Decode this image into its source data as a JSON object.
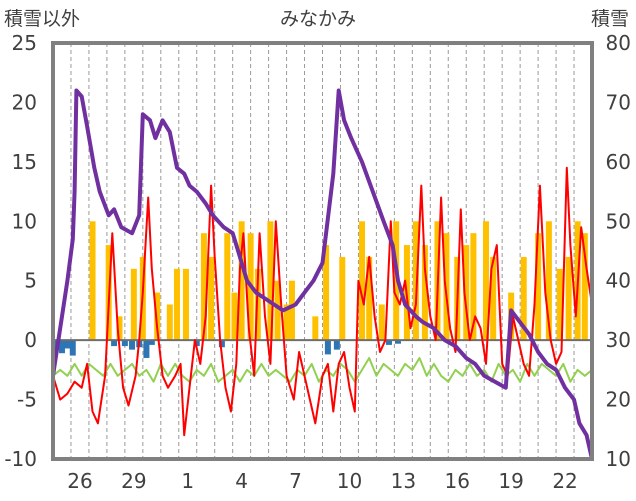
{
  "chart_data": {
    "type": "line",
    "title": "みなかみ",
    "left_axis_label": "積雪以外",
    "right_axis_label": "積雪",
    "y_left": {
      "min": -10,
      "max": 25,
      "ticks": [
        -10,
        -5,
        0,
        5,
        10,
        15,
        20,
        25
      ]
    },
    "y_right": {
      "min": 10,
      "max": 80,
      "ticks": [
        10,
        20,
        30,
        40,
        50,
        60,
        70,
        80
      ]
    },
    "x_ticks": [
      {
        "label": "26",
        "day": 1.5
      },
      {
        "label": "29",
        "day": 4.5
      },
      {
        "label": "1",
        "day": 7.5
      },
      {
        "label": "4",
        "day": 10.5
      },
      {
        "label": "7",
        "day": 13.5
      },
      {
        "label": "10",
        "day": 16.5
      },
      {
        "label": "13",
        "day": 19.5
      },
      {
        "label": "16",
        "day": 22.5
      },
      {
        "label": "19",
        "day": 25.5
      },
      {
        "label": "22",
        "day": 28.5
      }
    ],
    "x_range": [
      0,
      30
    ],
    "grid": "vertical-dashed",
    "colors": {
      "snow_depth": "#7030a0",
      "temp_max": "#ff0000",
      "temp_min": "#92d050",
      "precip": "#ffc000",
      "negative": "#2e75b6",
      "frame": "#808080"
    },
    "series": [
      {
        "key": "snow_depth",
        "axis": "right",
        "points": [
          [
            0,
            24
          ],
          [
            0.3,
            30
          ],
          [
            0.8,
            40
          ],
          [
            1.1,
            47
          ],
          [
            1.2,
            55
          ],
          [
            1.3,
            72
          ],
          [
            1.6,
            71
          ],
          [
            1.9,
            66
          ],
          [
            2.3,
            59
          ],
          [
            2.6,
            55
          ],
          [
            3.1,
            51
          ],
          [
            3.4,
            52
          ],
          [
            3.8,
            49
          ],
          [
            4.4,
            48
          ],
          [
            4.8,
            51
          ],
          [
            5.0,
            68
          ],
          [
            5.4,
            67
          ],
          [
            5.7,
            64
          ],
          [
            6.1,
            67
          ],
          [
            6.5,
            65
          ],
          [
            6.9,
            59
          ],
          [
            7.3,
            58
          ],
          [
            7.6,
            56
          ],
          [
            8.0,
            55
          ],
          [
            8.5,
            53
          ],
          [
            8.9,
            51
          ],
          [
            9.5,
            49
          ],
          [
            10.0,
            48
          ],
          [
            10.4,
            44
          ],
          [
            10.8,
            40
          ],
          [
            11.3,
            38
          ],
          [
            11.8,
            37
          ],
          [
            12.3,
            36
          ],
          [
            12.8,
            35
          ],
          [
            13.5,
            36
          ],
          [
            14.0,
            38
          ],
          [
            14.5,
            40
          ],
          [
            15.0,
            43
          ],
          [
            15.6,
            58
          ],
          [
            15.9,
            72
          ],
          [
            16.2,
            67
          ],
          [
            16.6,
            64
          ],
          [
            17.2,
            60
          ],
          [
            17.8,
            55
          ],
          [
            18.4,
            50
          ],
          [
            18.9,
            46
          ],
          [
            19.2,
            40
          ],
          [
            19.6,
            36
          ],
          [
            20.2,
            34
          ],
          [
            20.6,
            33
          ],
          [
            21.2,
            32
          ],
          [
            21.8,
            30
          ],
          [
            22.4,
            29
          ],
          [
            23.0,
            27
          ],
          [
            23.5,
            26
          ],
          [
            24.0,
            24
          ],
          [
            24.6,
            23
          ],
          [
            25.2,
            22
          ],
          [
            25.5,
            35
          ],
          [
            26.0,
            33
          ],
          [
            26.5,
            31
          ],
          [
            27.0,
            28
          ],
          [
            27.5,
            26
          ],
          [
            28.0,
            25
          ],
          [
            28.5,
            22
          ],
          [
            29.0,
            20
          ],
          [
            29.3,
            16
          ],
          [
            29.7,
            14
          ],
          [
            30.0,
            10
          ]
        ]
      },
      {
        "key": "temp_max",
        "axis": "left",
        "points": [
          [
            0,
            -3
          ],
          [
            0.4,
            -5
          ],
          [
            0.8,
            -4.5
          ],
          [
            1.2,
            -3.5
          ],
          [
            1.6,
            -4
          ],
          [
            1.9,
            -2
          ],
          [
            2.2,
            -6
          ],
          [
            2.5,
            -7
          ],
          [
            2.9,
            -3
          ],
          [
            3.1,
            3
          ],
          [
            3.3,
            9
          ],
          [
            3.6,
            1
          ],
          [
            3.9,
            -4
          ],
          [
            4.2,
            -5.5
          ],
          [
            4.6,
            -3
          ],
          [
            4.8,
            0
          ],
          [
            5.0,
            4
          ],
          [
            5.3,
            12
          ],
          [
            5.5,
            6
          ],
          [
            5.8,
            1
          ],
          [
            6.1,
            -3
          ],
          [
            6.4,
            -4
          ],
          [
            6.8,
            -3
          ],
          [
            7.1,
            -2
          ],
          [
            7.3,
            -8
          ],
          [
            7.6,
            -4
          ],
          [
            7.9,
            0
          ],
          [
            8.2,
            -2
          ],
          [
            8.5,
            2
          ],
          [
            8.8,
            13
          ],
          [
            9.0,
            7
          ],
          [
            9.3,
            0
          ],
          [
            9.6,
            -4
          ],
          [
            9.9,
            -6
          ],
          [
            10.2,
            -2
          ],
          [
            10.4,
            6
          ],
          [
            10.6,
            9
          ],
          [
            10.9,
            1
          ],
          [
            11.2,
            -3
          ],
          [
            11.5,
            9
          ],
          [
            11.8,
            2
          ],
          [
            12.1,
            -2
          ],
          [
            12.4,
            10
          ],
          [
            12.7,
            3
          ],
          [
            13.0,
            -3
          ],
          [
            13.4,
            -5
          ],
          [
            13.7,
            -1
          ],
          [
            14.0,
            -3
          ],
          [
            14.3,
            -5
          ],
          [
            14.6,
            -7
          ],
          [
            15.0,
            -3
          ],
          [
            15.3,
            -2
          ],
          [
            15.6,
            -6
          ],
          [
            15.9,
            -2
          ],
          [
            16.2,
            -1
          ],
          [
            16.5,
            -4
          ],
          [
            16.8,
            -6
          ],
          [
            17.0,
            5
          ],
          [
            17.3,
            3
          ],
          [
            17.6,
            7
          ],
          [
            17.9,
            2
          ],
          [
            18.2,
            -1
          ],
          [
            18.5,
            0
          ],
          [
            18.8,
            10
          ],
          [
            19.0,
            4
          ],
          [
            19.3,
            3
          ],
          [
            19.6,
            5
          ],
          [
            19.9,
            1
          ],
          [
            20.2,
            3
          ],
          [
            20.5,
            13
          ],
          [
            20.7,
            6
          ],
          [
            21.0,
            2
          ],
          [
            21.3,
            0
          ],
          [
            21.6,
            12
          ],
          [
            21.8,
            5
          ],
          [
            22.1,
            1
          ],
          [
            22.4,
            -1
          ],
          [
            22.7,
            11
          ],
          [
            22.9,
            4
          ],
          [
            23.2,
            0
          ],
          [
            23.5,
            2
          ],
          [
            23.8,
            1
          ],
          [
            24.1,
            -2
          ],
          [
            24.4,
            6
          ],
          [
            24.7,
            8
          ],
          [
            25.0,
            -2
          ],
          [
            25.3,
            -3
          ],
          [
            25.6,
            2
          ],
          [
            25.9,
            0
          ],
          [
            26.2,
            -2
          ],
          [
            26.5,
            -3
          ],
          [
            26.8,
            3
          ],
          [
            27.1,
            13
          ],
          [
            27.4,
            4
          ],
          [
            27.7,
            0
          ],
          [
            28.0,
            -2
          ],
          [
            28.3,
            -1
          ],
          [
            28.6,
            14.5
          ],
          [
            28.8,
            8
          ],
          [
            29.1,
            2
          ],
          [
            29.4,
            9.5
          ],
          [
            29.7,
            6
          ],
          [
            30.0,
            3
          ]
        ]
      },
      {
        "key": "temp_min",
        "axis": "left",
        "points": [
          [
            0,
            -3
          ],
          [
            0.4,
            -2.5
          ],
          [
            0.8,
            -3
          ],
          [
            1.2,
            -2
          ],
          [
            1.6,
            -3
          ],
          [
            2.0,
            -2
          ],
          [
            2.4,
            -2.5
          ],
          [
            2.8,
            -3
          ],
          [
            3.2,
            -2
          ],
          [
            3.6,
            -3
          ],
          [
            4.0,
            -2.5
          ],
          [
            4.4,
            -2
          ],
          [
            4.8,
            -3
          ],
          [
            5.2,
            -2.5
          ],
          [
            5.6,
            -3.5
          ],
          [
            6.0,
            -2
          ],
          [
            6.4,
            -3
          ],
          [
            6.8,
            -2
          ],
          [
            7.2,
            -3
          ],
          [
            7.6,
            -3.5
          ],
          [
            8.0,
            -2.5
          ],
          [
            8.4,
            -3
          ],
          [
            8.8,
            -2
          ],
          [
            9.2,
            -3.5
          ],
          [
            9.6,
            -3
          ],
          [
            10.0,
            -2.5
          ],
          [
            10.4,
            -3.5
          ],
          [
            10.8,
            -2.5
          ],
          [
            11.2,
            -3
          ],
          [
            11.6,
            -2
          ],
          [
            12.0,
            -3
          ],
          [
            12.4,
            -2.5
          ],
          [
            12.8,
            -3
          ],
          [
            13.2,
            -3.5
          ],
          [
            13.6,
            -2.5
          ],
          [
            14.0,
            -3
          ],
          [
            14.4,
            -2
          ],
          [
            14.8,
            -3.5
          ],
          [
            15.2,
            -2.5
          ],
          [
            15.6,
            -3
          ],
          [
            16.0,
            -2
          ],
          [
            16.4,
            -2.5
          ],
          [
            16.8,
            -3.5
          ],
          [
            17.2,
            -2.5
          ],
          [
            17.6,
            -1.5
          ],
          [
            18.0,
            -3
          ],
          [
            18.4,
            -2
          ],
          [
            18.8,
            -2.5
          ],
          [
            19.2,
            -3
          ],
          [
            19.6,
            -2
          ],
          [
            20.0,
            -2.5
          ],
          [
            20.4,
            -1.5
          ],
          [
            20.8,
            -3
          ],
          [
            21.2,
            -2
          ],
          [
            21.6,
            -3
          ],
          [
            22.0,
            -3.5
          ],
          [
            22.4,
            -2.5
          ],
          [
            22.8,
            -3
          ],
          [
            23.2,
            -2
          ],
          [
            23.6,
            -3
          ],
          [
            24.0,
            -2.5
          ],
          [
            24.4,
            -3.5
          ],
          [
            24.8,
            -2
          ],
          [
            25.2,
            -3
          ],
          [
            25.6,
            -2.5
          ],
          [
            26.0,
            -3.5
          ],
          [
            26.4,
            -2
          ],
          [
            26.8,
            -3
          ],
          [
            27.2,
            -2
          ],
          [
            27.6,
            -2.5
          ],
          [
            28.0,
            -3
          ],
          [
            28.4,
            -2
          ],
          [
            28.8,
            -3.5
          ],
          [
            29.2,
            -2.5
          ],
          [
            29.6,
            -3
          ],
          [
            30.0,
            -2.5
          ]
        ]
      }
    ],
    "precip_bars": [
      [
        2.2,
        10
      ],
      [
        3.1,
        8
      ],
      [
        3.7,
        2
      ],
      [
        4.5,
        6
      ],
      [
        5.0,
        7
      ],
      [
        5.8,
        4
      ],
      [
        6.5,
        3
      ],
      [
        6.9,
        6
      ],
      [
        7.4,
        6
      ],
      [
        8.4,
        9
      ],
      [
        8.8,
        7
      ],
      [
        9.7,
        9
      ],
      [
        10.1,
        4
      ],
      [
        10.5,
        10
      ],
      [
        11.0,
        9
      ],
      [
        11.4,
        6
      ],
      [
        12.1,
        10
      ],
      [
        12.5,
        5
      ],
      [
        13.0,
        3
      ],
      [
        13.3,
        5
      ],
      [
        14.6,
        2
      ],
      [
        15.2,
        8
      ],
      [
        16.1,
        7
      ],
      [
        17.2,
        10
      ],
      [
        17.6,
        7
      ],
      [
        18.3,
        3
      ],
      [
        19.1,
        10
      ],
      [
        19.7,
        8
      ],
      [
        20.2,
        10
      ],
      [
        20.7,
        8
      ],
      [
        21.4,
        10
      ],
      [
        21.9,
        9
      ],
      [
        22.5,
        7
      ],
      [
        23.0,
        8
      ],
      [
        23.4,
        9
      ],
      [
        24.1,
        10
      ],
      [
        24.5,
        7
      ],
      [
        25.5,
        4
      ],
      [
        26.2,
        7
      ],
      [
        27.0,
        9
      ],
      [
        27.6,
        10
      ],
      [
        28.2,
        6
      ],
      [
        28.7,
        7
      ],
      [
        29.2,
        10
      ],
      [
        29.6,
        9
      ]
    ],
    "negative_bars": [
      [
        0.2,
        -0.8
      ],
      [
        0.5,
        -1.1
      ],
      [
        0.8,
        -0.7
      ],
      [
        1.1,
        -1.3
      ],
      [
        3.4,
        -0.5
      ],
      [
        4.0,
        -0.5
      ],
      [
        4.4,
        -0.8
      ],
      [
        4.8,
        -0.6
      ],
      [
        5.2,
        -1.5
      ],
      [
        5.5,
        -0.4
      ],
      [
        8.0,
        -0.5
      ],
      [
        9.4,
        -0.6
      ],
      [
        15.3,
        -1.2
      ],
      [
        15.8,
        -0.8
      ],
      [
        18.7,
        -0.4
      ],
      [
        19.2,
        -0.3
      ]
    ]
  }
}
